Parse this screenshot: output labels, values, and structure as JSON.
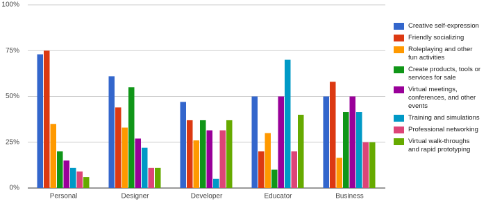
{
  "chart_data": {
    "type": "bar",
    "categories": [
      "Personal",
      "Designer",
      "Developer",
      "Educator",
      "Business"
    ],
    "series": [
      {
        "name": "Creative self-expression",
        "color": "#3366cc",
        "values": [
          73,
          61,
          47,
          50,
          50
        ]
      },
      {
        "name": "Friendly socializing",
        "color": "#dc3912",
        "values": [
          75,
          44,
          37,
          20,
          58
        ]
      },
      {
        "name": "Roleplaying and other fun activities",
        "color": "#ff9900",
        "values": [
          35,
          33,
          26,
          30,
          16.5
        ]
      },
      {
        "name": "Create products, tools or services for sale",
        "color": "#109618",
        "values": [
          20,
          55,
          37,
          10,
          41.5
        ]
      },
      {
        "name": "Virtual meetings, conferences, and other events",
        "color": "#990099",
        "values": [
          15,
          27,
          31.5,
          50,
          50
        ]
      },
      {
        "name": "Training and simulations",
        "color": "#0099c6",
        "values": [
          11,
          22,
          5,
          70,
          41.5
        ]
      },
      {
        "name": "Professional networking",
        "color": "#dd4477",
        "values": [
          9,
          11,
          31.5,
          20,
          25
        ]
      },
      {
        "name": "Virtual walk-throughs and rapid prototyping",
        "color": "#66aa00",
        "values": [
          6,
          11,
          37,
          40,
          25
        ]
      }
    ],
    "ylim": [
      0,
      100
    ],
    "yticks": [
      {
        "value": 0,
        "label": "0%"
      },
      {
        "value": 25,
        "label": "25%"
      },
      {
        "value": 50,
        "label": "50%"
      },
      {
        "value": 75,
        "label": "75%"
      },
      {
        "value": 100,
        "label": "100%"
      }
    ],
    "grid": true
  }
}
